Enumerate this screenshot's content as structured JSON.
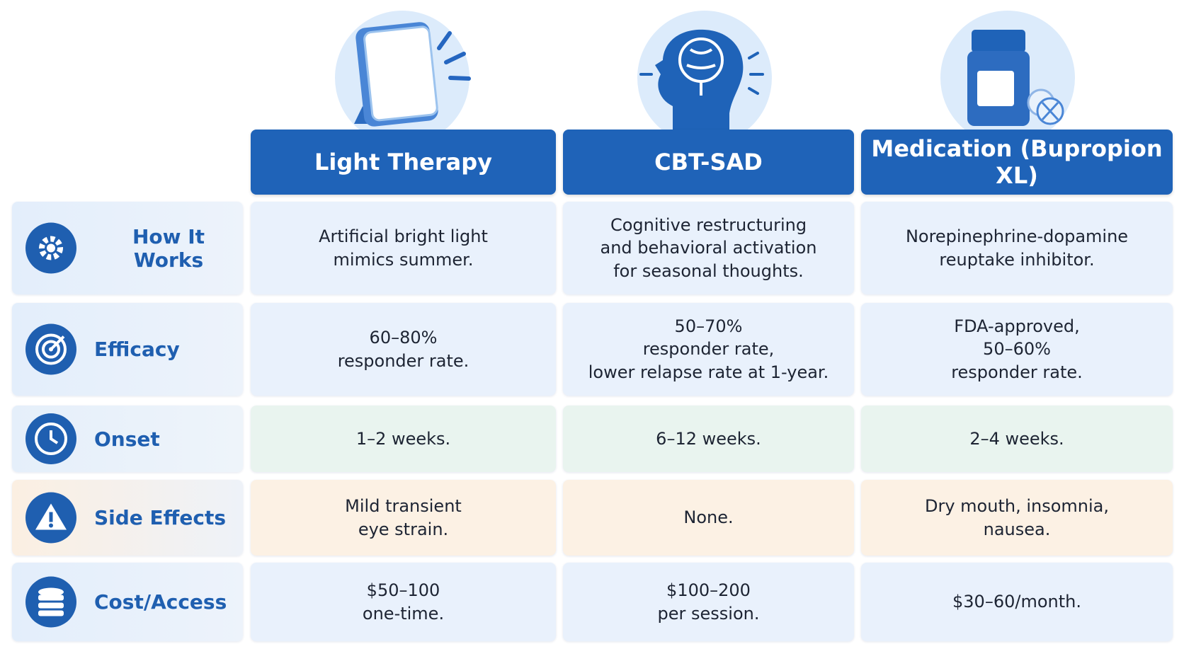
{
  "table": {
    "columns": [
      "Light Therapy",
      "CBT-SAD",
      "Medication (Bupropion XL)"
    ],
    "rows": [
      {
        "label": "How It Works",
        "cells": [
          "Artificial bright light\nmimics summer.",
          "Cognitive restructuring\nand behavioral activation\nfor seasonal thoughts.",
          "Norepinephrine-dopamine\nreuptake inhibitor."
        ]
      },
      {
        "label": "Efficacy",
        "cells": [
          "60–80%\nresponder rate.",
          "50–70%\nresponder rate,\nlower relapse rate at 1-year.",
          "FDA-approved,\n50–60%\nresponder rate."
        ]
      },
      {
        "label": "Onset",
        "cells": [
          "1–2 weeks.",
          "6–12 weeks.",
          "2–4 weeks."
        ]
      },
      {
        "label": "Side Effects",
        "cells": [
          "Mild transient\neye strain.",
          "None.",
          "Dry mouth, insomnia,\nnausea."
        ]
      },
      {
        "label": "Cost/Access",
        "cells": [
          "$50–100\none-time.",
          "$100–200\nper session.",
          "$30–60/month."
        ]
      }
    ]
  }
}
